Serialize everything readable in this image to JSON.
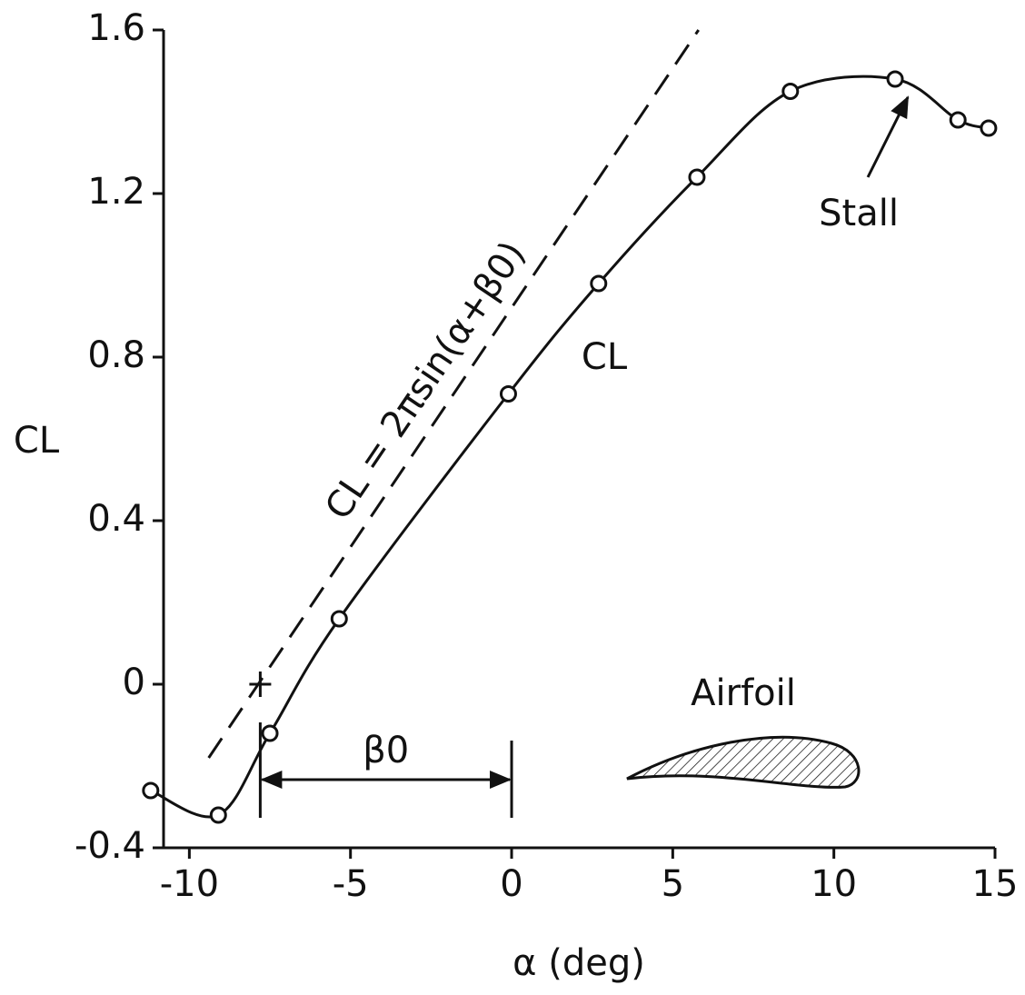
{
  "chart_data": {
    "type": "line",
    "x_label": "α (deg)",
    "y_label": "CL",
    "xlim": [
      -10.8,
      15
    ],
    "xticks": [
      -10,
      -5,
      0,
      5,
      10,
      15
    ],
    "ylim": [
      -0.4,
      1.6
    ],
    "yticks": [
      -0.4,
      0,
      0.4,
      0.8,
      1.2,
      1.6
    ],
    "series": [
      {
        "name": "CL",
        "color": "#111111",
        "smooth": true,
        "markers": true,
        "x": [
          -11.2,
          -9.1,
          -7.5,
          -5.35,
          -0.1,
          2.7,
          5.75,
          8.65,
          11.9,
          13.85,
          14.8
        ],
        "values": [
          -0.26,
          -0.32,
          -0.12,
          0.16,
          0.71,
          0.98,
          1.24,
          1.45,
          1.48,
          1.38,
          1.36
        ]
      },
      {
        "name": "CL = 2πsin(α+β0)",
        "color": "#111111",
        "dashed": true,
        "x": [
          -9.4,
          5.8
        ],
        "values": [
          -0.18,
          1.6
        ]
      }
    ],
    "zero_lift_angle": -7.8,
    "annotations": [
      {
        "text": "Stall",
        "x": 11.9,
        "y": 1.48
      },
      {
        "text": "Airfoil"
      },
      {
        "text": "β0",
        "x": [
          -7.8,
          0
        ]
      }
    ]
  }
}
